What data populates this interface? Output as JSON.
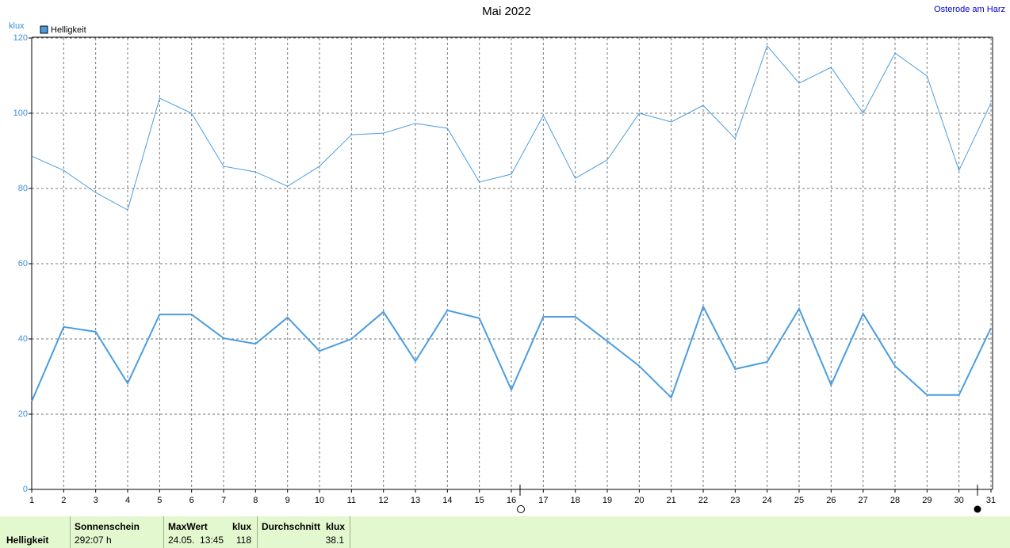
{
  "chart_data": {
    "type": "line",
    "title": "Mai 2022",
    "location": "Osterode am Harz",
    "y_unit": "klux",
    "x": [
      1,
      2,
      3,
      4,
      5,
      6,
      7,
      8,
      9,
      10,
      11,
      12,
      13,
      14,
      15,
      16,
      17,
      18,
      19,
      20,
      21,
      22,
      23,
      24,
      25,
      26,
      27,
      28,
      29,
      30,
      31
    ],
    "xlim": [
      1,
      31
    ],
    "xticks": [
      1,
      2,
      3,
      4,
      5,
      6,
      7,
      8,
      9,
      10,
      11,
      12,
      13,
      14,
      15,
      16,
      17,
      18,
      19,
      20,
      21,
      22,
      23,
      24,
      25,
      26,
      27,
      28,
      29,
      30,
      31
    ],
    "ylim": [
      0,
      120
    ],
    "yticks": [
      0,
      20,
      40,
      60,
      80,
      100,
      120
    ],
    "grid": true,
    "series": [
      {
        "name": "Helligkeit",
        "color": "#4a9de0",
        "values": [
          23.4,
          43.2,
          41.9,
          28.2,
          46.5,
          46.5,
          40.2,
          38.7,
          45.7,
          36.8,
          40,
          47.2,
          34.1,
          47.6,
          45.5,
          26.5,
          45.9,
          45.9,
          39.4,
          32.8,
          24.4,
          48.6,
          32,
          33.9,
          48,
          27.8,
          46.7,
          32.8,
          25.1,
          25.1,
          42.9
        ]
      },
      {
        "color": "#4a9de0",
        "values": [
          88.6,
          84.8,
          78.9,
          74.3,
          104,
          100,
          85.9,
          84.4,
          80.6,
          85.9,
          94.3,
          94.7,
          97.3,
          96,
          81.7,
          83.8,
          99.4,
          82.7,
          87.6,
          100,
          97.7,
          102.1,
          93.3,
          117.9,
          108,
          112.2,
          100,
          116,
          109.9,
          84.8,
          102.7
        ]
      }
    ]
  },
  "footer": {
    "row_label": "Helligkeit",
    "sun_header": "Sonnenschein",
    "sun_value": "292:07 h",
    "max_header": "MaxWert",
    "max_unit": "klux",
    "max_date": "24.05.  13:45",
    "max_value": "118",
    "avg_header": "Durchschnitt",
    "avg_unit": "klux",
    "avg_value": "38.1"
  }
}
